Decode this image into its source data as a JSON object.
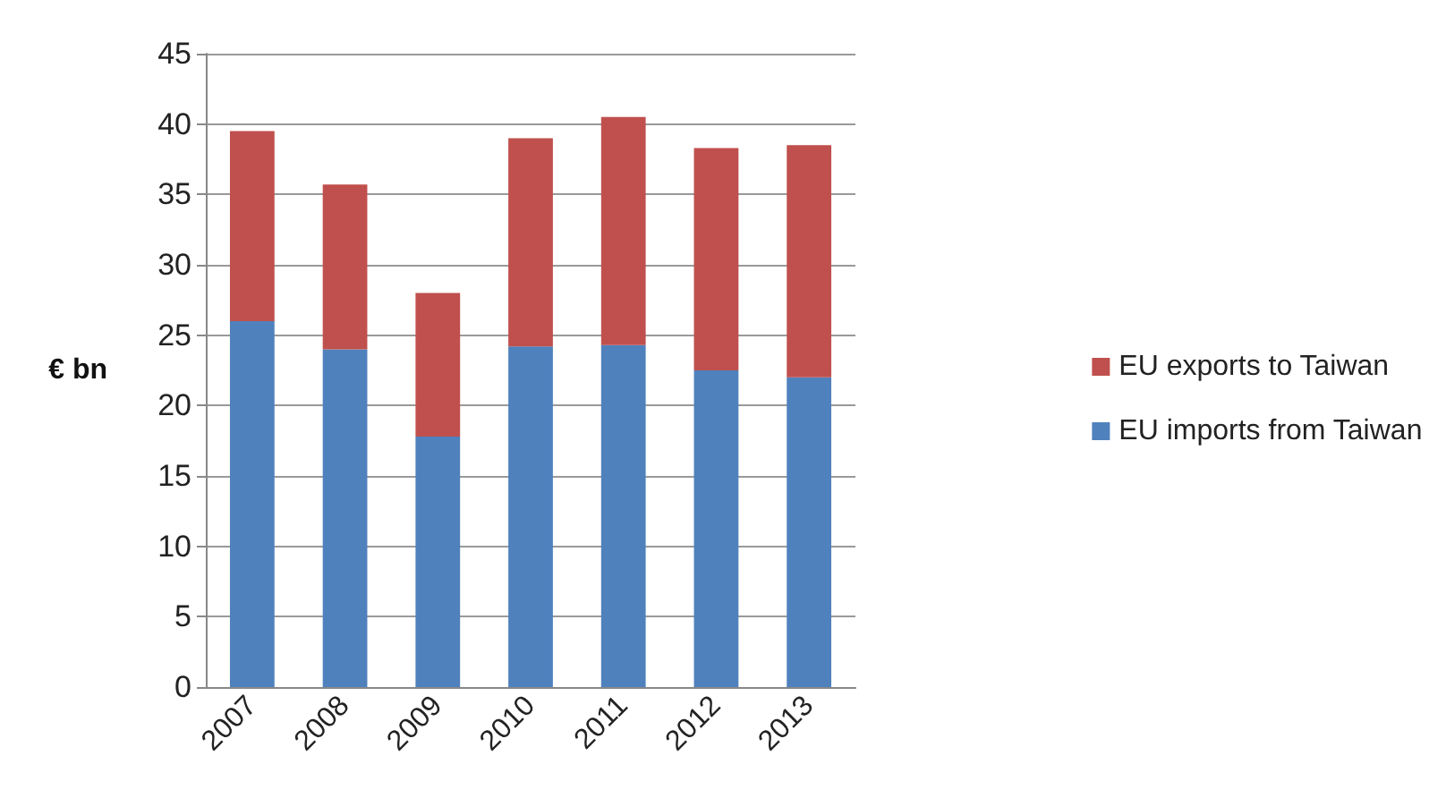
{
  "chart_data": {
    "type": "bar",
    "stacked": true,
    "ylabel": "€ bn",
    "categories": [
      "2007",
      "2008",
      "2009",
      "2010",
      "2011",
      "2012",
      "2013"
    ],
    "series": [
      {
        "name": "EU imports from Taiwan",
        "color": "#4f81bd",
        "values": [
          26,
          24,
          17.8,
          24.2,
          24.3,
          22.5,
          22
        ]
      },
      {
        "name": "EU exports to Taiwan",
        "color": "#c0504d",
        "values": [
          13.5,
          11.7,
          10.2,
          14.8,
          16.2,
          15.8,
          16.5
        ]
      }
    ],
    "ylim": [
      0,
      45
    ],
    "yticks": [
      0,
      5,
      10,
      15,
      20,
      25,
      30,
      35,
      40,
      45
    ],
    "grid": "y",
    "legend": "right"
  }
}
